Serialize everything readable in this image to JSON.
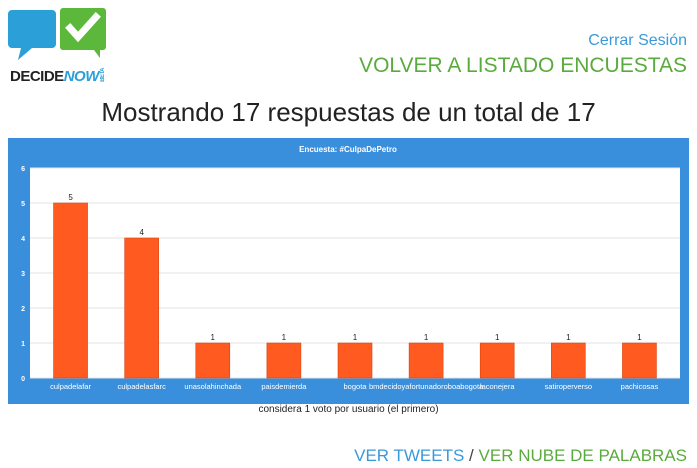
{
  "logo": {
    "word_main": "DECIDE",
    "word_accent": "NOW",
    "badge": "BETA"
  },
  "header": {
    "logout_label": "Cerrar Sesión",
    "back_label": "VOLVER A LISTADO ENCUESTAS"
  },
  "summary": {
    "heading": "Mostrando 17 respuestas de un total de 17"
  },
  "chart_data": {
    "type": "bar",
    "title": "Encuesta: #CulpaDePetro",
    "categories": [
      "culpadelafar",
      "culpadelasfarc",
      "unasolahinchada",
      "paisdemierda",
      "bogota",
      "bmdecidoyafortunadoroboabogota",
      "laconejera",
      "satiroperverso",
      "pachicosas"
    ],
    "values": [
      5,
      4,
      1,
      1,
      1,
      1,
      1,
      1,
      1
    ],
    "data_labels": [
      "5",
      "4",
      "1",
      "1",
      "1",
      "1",
      "1",
      "1",
      "1"
    ],
    "ylim": [
      0,
      6
    ],
    "yticks": [
      0,
      1,
      2,
      3,
      4,
      5,
      6
    ],
    "grid": true,
    "colors": {
      "panel": "#3a8fdc",
      "plot": "#ffffff",
      "bar": "#ff5a1f",
      "grid": "#e3e3e3"
    }
  },
  "chart_note": "considera 1 voto por usuario (el primero)",
  "footer": {
    "tweets_label": "VER TWEETS",
    "separator": "/",
    "wordcloud_label": "VER NUBE DE PALABRAS"
  }
}
